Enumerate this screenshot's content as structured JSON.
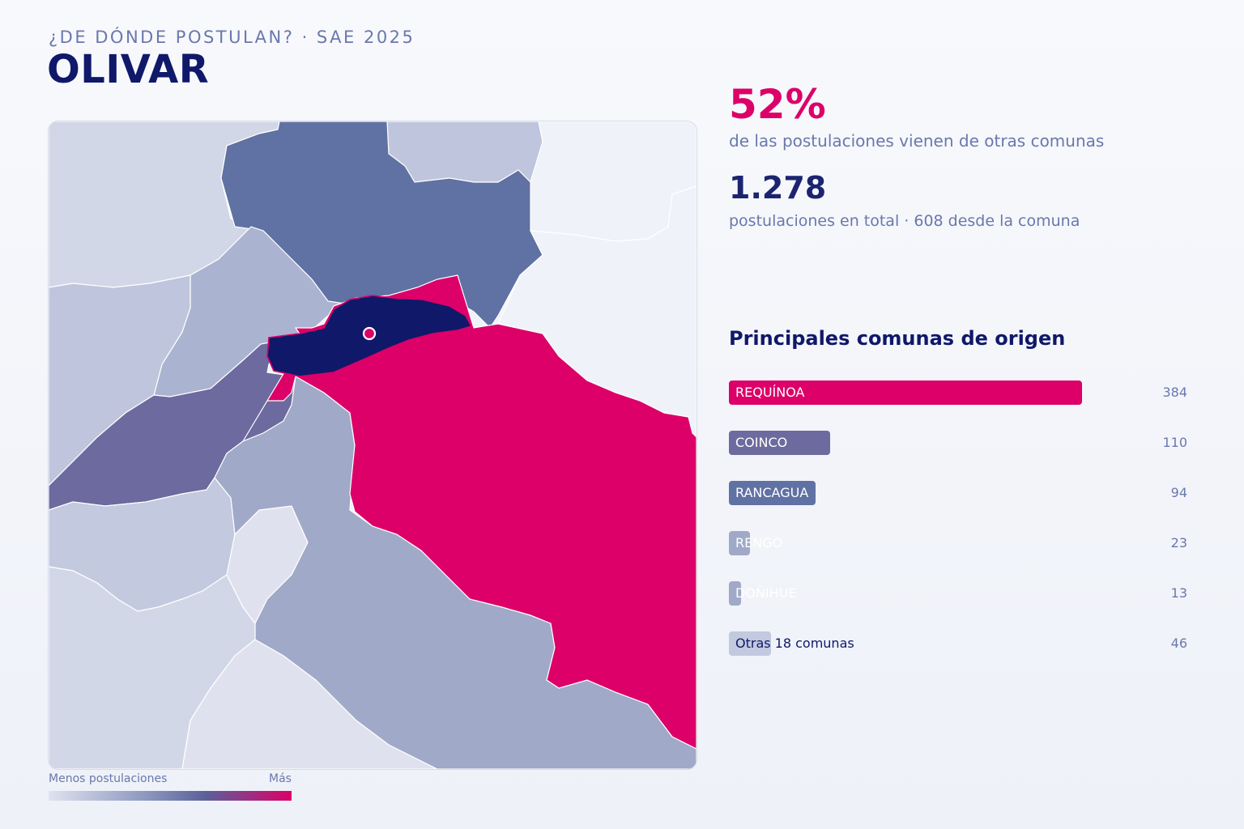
{
  "header": {
    "kicker": "¿DE DÓNDE POSTULAN? · SAE 2025",
    "title": "OLIVAR"
  },
  "stats": {
    "pct": "52%",
    "pct_caption": "de las postulaciones vienen de otras comunas",
    "total": "1.278",
    "total_caption": "postulaciones en total · 608 desde la comuna"
  },
  "legend": {
    "min_label": "Menos postulaciones",
    "max_label": "Más"
  },
  "ranking": {
    "title": "Principales comunas de origen",
    "items": [
      {
        "label": "REQUÍNOA",
        "value": 384,
        "value_text": "384",
        "color": "#dc0068",
        "dark_text": false
      },
      {
        "label": "COINCO",
        "value": 110,
        "value_text": "110",
        "color": "#6c6a9e",
        "dark_text": false
      },
      {
        "label": "RANCAGUA",
        "value": 94,
        "value_text": "94",
        "color": "#6071a3",
        "dark_text": false
      },
      {
        "label": "RENGO",
        "value": 23,
        "value_text": "23",
        "color": "#a0a9c8",
        "dark_text": false
      },
      {
        "label": "DOÑIHUE",
        "value": 13,
        "value_text": "13",
        "color": "#a0a9c8",
        "dark_text": false
      },
      {
        "label": "Otras 18 comunas",
        "value": 46,
        "value_text": "46",
        "color": "#c3c9de",
        "dark_text": true
      }
    ]
  },
  "colors": {
    "accent": "#dc0068",
    "navy": "#10186a",
    "muted": "#6a78ad"
  }
}
